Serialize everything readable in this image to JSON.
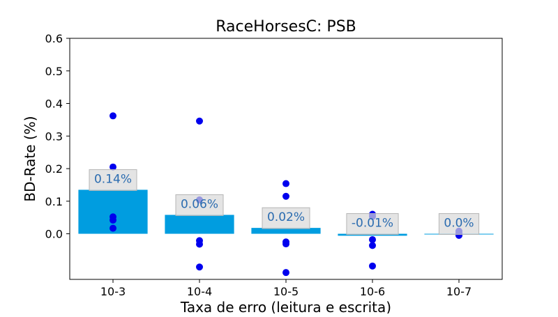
{
  "chart_data": {
    "type": "bar",
    "title": "RaceHorsesC: PSB",
    "xlabel": "Taxa de erro (leitura e escrita)",
    "ylabel": "BD-Rate (%)",
    "ylim": [
      -0.14,
      0.6
    ],
    "yticks": [
      0.0,
      0.1,
      0.2,
      0.3,
      0.4,
      0.5,
      0.6
    ],
    "ytick_labels": [
      "0.0",
      "0.1",
      "0.2",
      "0.3",
      "0.4",
      "0.5",
      "0.6"
    ],
    "categories": [
      "10-3",
      "10-4",
      "10-5",
      "10-6",
      "10-7"
    ],
    "values": [
      0.135,
      0.058,
      0.018,
      -0.006,
      -0.002
    ],
    "value_labels": [
      "0.14%",
      "0.06%",
      "0.02%",
      "-0.01%",
      "0.0%"
    ],
    "points": [
      [
        0.362,
        0.205,
        0.052,
        0.042,
        0.017
      ],
      [
        0.346,
        0.104,
        -0.021,
        -0.032,
        -0.102
      ],
      [
        0.154,
        0.115,
        -0.025,
        -0.031,
        -0.119
      ],
      [
        0.06,
        0.053,
        -0.018,
        -0.036,
        -0.099
      ],
      [
        0.008,
        0.003,
        -0.001,
        -0.003,
        -0.005
      ]
    ],
    "bar_color": "#009de0",
    "point_color": "#0000ee",
    "grid": false
  }
}
